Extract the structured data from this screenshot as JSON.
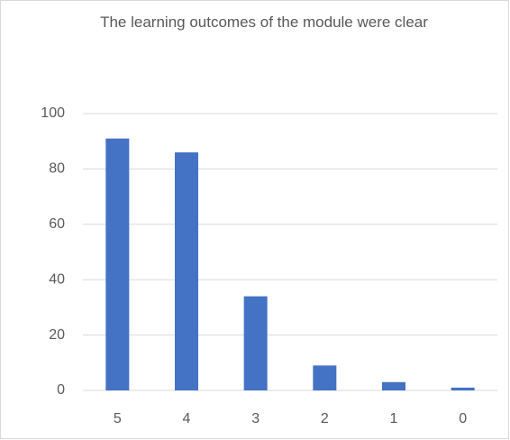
{
  "chart_data": {
    "type": "bar",
    "title": "The learning outcomes of the module were clear",
    "categories": [
      "5",
      "4",
      "3",
      "2",
      "1",
      "0"
    ],
    "values": [
      91,
      86,
      34,
      9,
      3,
      1
    ],
    "color": "#4472c4",
    "ylim": [
      0,
      100
    ],
    "yticks": [
      0,
      20,
      40,
      60,
      80,
      100
    ],
    "grid": true
  }
}
